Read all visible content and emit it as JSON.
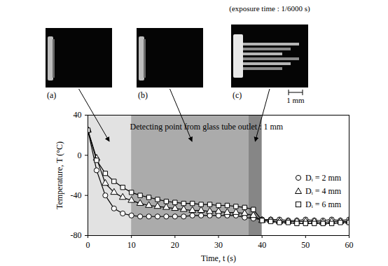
{
  "chart_data": {
    "type": "line",
    "x_label": "Time, t (s)",
    "y_label": "Temperature, T (°C)",
    "annotation": "Detecting point from glass tube outlet : 1 mm",
    "x": [
      0,
      2,
      4,
      6,
      8,
      10,
      12,
      14,
      16,
      18,
      20,
      22,
      24,
      26,
      28,
      30,
      32,
      34,
      36,
      38,
      40,
      42,
      44,
      46,
      48,
      50,
      52,
      54,
      56,
      58,
      60
    ],
    "series": [
      {
        "name": "Dᵢ = 2 mm",
        "color": "#000000",
        "marker": "circle",
        "line_style": "solid",
        "values": [
          25,
          -15,
          -40,
          -53,
          -58,
          -60,
          -61,
          -61,
          -61,
          -61,
          -61,
          -61,
          -60,
          -60,
          -60,
          -60,
          -60,
          -60,
          -62,
          -63,
          -64,
          -64,
          -64,
          -65,
          -65,
          -64,
          -65,
          -65,
          -64,
          -65,
          -64
        ]
      },
      {
        "name": "Dᵢ = 4 mm",
        "color": "#000000",
        "marker": "triangle",
        "line_style": "solid",
        "values": [
          25,
          -3,
          -28,
          -37,
          -42,
          -45,
          -48,
          -50,
          -51,
          -52,
          -53,
          -54,
          -55,
          -55,
          -56,
          -56,
          -57,
          -57,
          -58,
          -60,
          -65,
          -65,
          -66,
          -66,
          -66,
          -66,
          -66,
          -67,
          -66,
          -66,
          -66
        ]
      },
      {
        "name": "Dᵢ = 6 mm",
        "color": "#000000",
        "marker": "square",
        "line_style": "solid",
        "values": [
          25,
          -5,
          -18,
          -26,
          -32,
          -37,
          -40,
          -42,
          -44,
          -46,
          -47,
          -48,
          -48,
          -49,
          -49,
          -50,
          -50,
          -51,
          -52,
          -54,
          -65,
          -66,
          -67,
          -67,
          -68,
          -68,
          -68,
          -68,
          -68,
          -67,
          -67
        ]
      }
    ],
    "xlim": [
      0,
      60
    ],
    "xticks": [
      0,
      10,
      20,
      30,
      40,
      50,
      60
    ],
    "ylim": [
      -80,
      40
    ],
    "yticks": [
      -80,
      -40,
      0,
      40
    ],
    "legend": "right",
    "regions": [
      {
        "x": [
          0,
          10
        ],
        "color": "#e2e2e2"
      },
      {
        "x": [
          10,
          37
        ],
        "color": "#ababab"
      },
      {
        "x": [
          37,
          40
        ],
        "color": "#868686"
      }
    ],
    "photos": {
      "caption": "(exposure time : 1/6000 s)",
      "scale_bar": "1 mm",
      "panels": [
        {
          "label": "(a)",
          "time": 5
        },
        {
          "label": "(b)",
          "time": 24
        },
        {
          "label": "(c)",
          "time": 38.5
        }
      ]
    }
  }
}
